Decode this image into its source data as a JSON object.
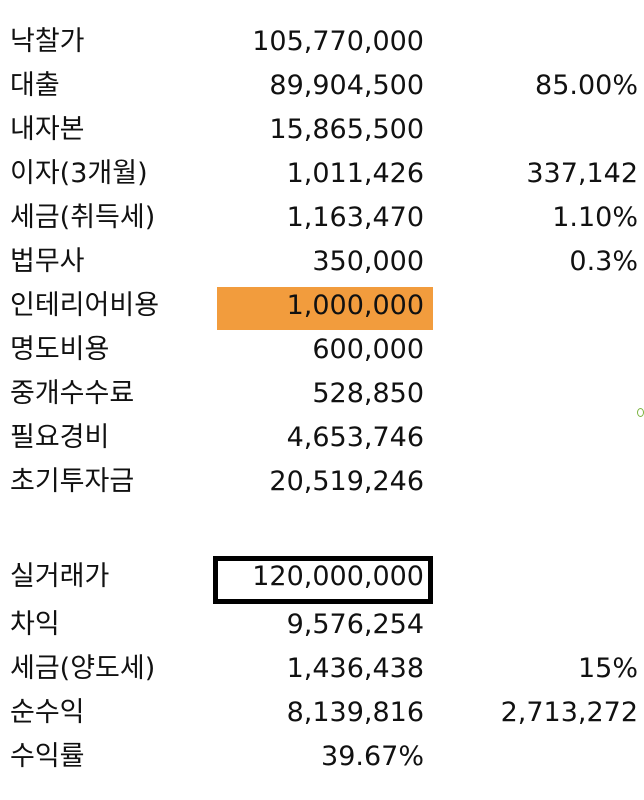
{
  "rows_top": [
    {
      "label": "낙찰가",
      "value": "105,770,000",
      "extra": ""
    },
    {
      "label": "대출",
      "value": "89,904,500",
      "extra": "85.00%"
    },
    {
      "label": "내자본",
      "value": "15,865,500",
      "extra": ""
    },
    {
      "label": "이자(3개월)",
      "value": "1,011,426",
      "extra": "337,142"
    },
    {
      "label": "세금(취득세)",
      "value": "1,163,470",
      "extra": "1.10%"
    },
    {
      "label": "법무사",
      "value": "350,000",
      "extra": "0.3%"
    },
    {
      "label": "인테리어비용",
      "value": "1,000,000",
      "extra": ""
    },
    {
      "label": "명도비용",
      "value": "600,000",
      "extra": ""
    },
    {
      "label": "중개수수료",
      "value": "528,850",
      "extra": ""
    },
    {
      "label": "필요경비",
      "value": "4,653,746",
      "extra": ""
    },
    {
      "label": "초기투자금",
      "value": "20,519,246",
      "extra": ""
    }
  ],
  "rows_bottom": [
    {
      "label": "실거래가",
      "value": "120,000,000",
      "extra": ""
    },
    {
      "label": "차익",
      "value": "9,576,254",
      "extra": ""
    },
    {
      "label": "세금(양도세)",
      "value": "1,436,438",
      "extra": "15%"
    },
    {
      "label": "순수익",
      "value": "8,139,816",
      "extra": "2,713,272"
    },
    {
      "label": "수익률",
      "value": "39.67%",
      "extra": ""
    }
  ],
  "colors": {
    "highlight_fill": "#f29c3d",
    "box_border": "#000000"
  }
}
